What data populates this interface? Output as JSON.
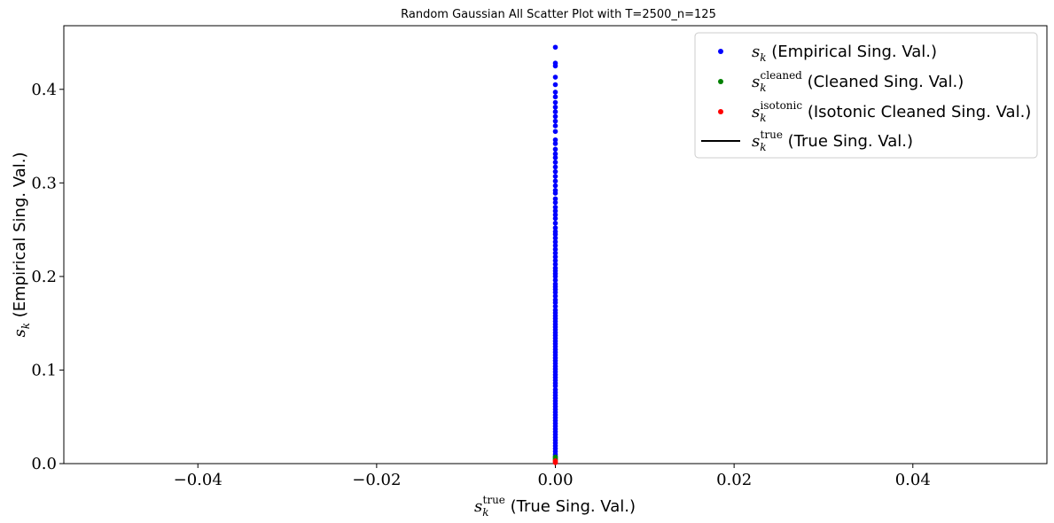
{
  "chart_data": {
    "type": "scatter",
    "title": "Random Gaussian All Scatter Plot with T=2500_n=125",
    "xlabel": {
      "sym": "s",
      "sub": "k",
      "sup": "true",
      "text": " (True Sing. Val.)"
    },
    "ylabel": {
      "sym": "s",
      "sub": "k",
      "text": " (Empirical Sing. Val.)"
    },
    "xlim": [
      -0.055,
      0.055
    ],
    "ylim": [
      0,
      0.468
    ],
    "xticks": [
      -0.04,
      -0.02,
      0.0,
      0.02,
      0.04
    ],
    "xtick_labels": [
      "−0.04",
      "−0.02",
      "0.00",
      "0.02",
      "0.04"
    ],
    "yticks": [
      0.0,
      0.1,
      0.2,
      0.3,
      0.4
    ],
    "ytick_labels": [
      "0.0",
      "0.1",
      "0.2",
      "0.3",
      "0.4"
    ],
    "legend_position": "top-right",
    "series": [
      {
        "name": {
          "sym": "s",
          "sub": "k",
          "sup": "",
          "text": " (Empirical Sing. Val.)"
        },
        "marker": "dot",
        "color": "#0000ff",
        "x": 0.0,
        "y": [
          0.445,
          0.428,
          0.425,
          0.413,
          0.405,
          0.397,
          0.392,
          0.386,
          0.381,
          0.376,
          0.371,
          0.366,
          0.361,
          0.355,
          0.346,
          0.342,
          0.336,
          0.331,
          0.327,
          0.322,
          0.317,
          0.312,
          0.307,
          0.302,
          0.297,
          0.292,
          0.289,
          0.283,
          0.279,
          0.274,
          0.27,
          0.266,
          0.262,
          0.257,
          0.252,
          0.248,
          0.245,
          0.241,
          0.237,
          0.233,
          0.229,
          0.225,
          0.221,
          0.217,
          0.213,
          0.209,
          0.206,
          0.203,
          0.2,
          0.196,
          0.192,
          0.189,
          0.186,
          0.183,
          0.179,
          0.175,
          0.172,
          0.168,
          0.164,
          0.161,
          0.158,
          0.155,
          0.152,
          0.149,
          0.146,
          0.143,
          0.14,
          0.137,
          0.134,
          0.131,
          0.128,
          0.125,
          0.122,
          0.119,
          0.116,
          0.113,
          0.11,
          0.107,
          0.104,
          0.101,
          0.098,
          0.095,
          0.092,
          0.089,
          0.086,
          0.083,
          0.079,
          0.076,
          0.073,
          0.07,
          0.067,
          0.064,
          0.061,
          0.058,
          0.055,
          0.052,
          0.049,
          0.046,
          0.043,
          0.04,
          0.037,
          0.034,
          0.031,
          0.028,
          0.025,
          0.022,
          0.019,
          0.016,
          0.013,
          0.01,
          0.008
        ]
      },
      {
        "name": {
          "sym": "s",
          "sub": "k",
          "sup": "cleaned",
          "text": " (Cleaned Sing. Val.)"
        },
        "marker": "dot",
        "color": "#008000",
        "x": 0.0,
        "y": [
          0.007,
          0.006,
          0.005,
          0.004
        ]
      },
      {
        "name": {
          "sym": "s",
          "sub": "k",
          "sup": "isotonic",
          "text": " (Isotonic Cleaned Sing. Val.)"
        },
        "marker": "dot",
        "color": "#ff0000",
        "x": 0.0,
        "y": [
          0.003,
          0.002,
          0.001
        ]
      },
      {
        "name": {
          "sym": "s",
          "sub": "k",
          "sup": "true",
          "text": " (True Sing. Val.)"
        },
        "marker": "line",
        "color": "#000000",
        "x": [],
        "y": []
      }
    ]
  }
}
